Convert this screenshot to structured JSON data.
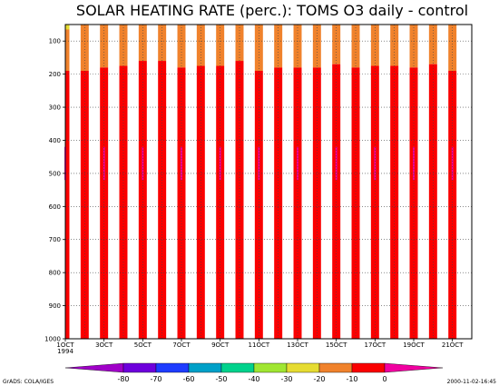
{
  "chart_data": {
    "type": "heatmap",
    "title": "SOLAR HEATING RATE (perc.): TOMS O3 daily - control",
    "xlabel": "",
    "ylabel": "",
    "x_tick_labels": [
      "1OCT\n1994",
      "3OCT",
      "5OCT",
      "7OCT",
      "9OCT",
      "11OCT",
      "13OCT",
      "15OCT",
      "17OCT",
      "19OCT",
      "21OCT"
    ],
    "x_ticks_day": [
      1,
      3,
      5,
      7,
      9,
      11,
      13,
      15,
      17,
      19,
      21
    ],
    "xlim": [
      1,
      22
    ],
    "y_tick_labels": [
      "100",
      "200",
      "300",
      "400",
      "500",
      "600",
      "700",
      "800",
      "900",
      "1000"
    ],
    "y_ticks": [
      100,
      200,
      300,
      400,
      500,
      600,
      700,
      800,
      900,
      1000
    ],
    "ylim": [
      1000,
      50
    ],
    "y_scale": "linear",
    "grid": true,
    "colorbar": {
      "levels": [
        -80,
        -70,
        -60,
        -50,
        -40,
        -30,
        -20,
        -10,
        0
      ],
      "labels": [
        "-80",
        "-70",
        "-60",
        "-50",
        "-40",
        "-30",
        "-20",
        "-10",
        "0"
      ],
      "colors": [
        "#a000c8",
        "#6e00dc",
        "#1e3cff",
        "#00a0c8",
        "#00d28c",
        "#a0e632",
        "#e6dc32",
        "#f0822c",
        "#fa0000",
        "#f000a0"
      ]
    },
    "bands_description": "daytime columns: orange (-20 to -10) above ~150-190 hPa, red (-10 to 0) below; magenta (>0) patches in lower levels",
    "day_columns": [
      {
        "day": 1.0,
        "orange_bottom": 190,
        "yellow_top": true
      },
      {
        "day": 2.0,
        "orange_bottom": 190
      },
      {
        "day": 3.0,
        "orange_bottom": 180
      },
      {
        "day": 4.0,
        "orange_bottom": 175
      },
      {
        "day": 5.0,
        "orange_bottom": 160
      },
      {
        "day": 6.0,
        "orange_bottom": 160
      },
      {
        "day": 7.0,
        "orange_bottom": 180
      },
      {
        "day": 8.0,
        "orange_bottom": 175
      },
      {
        "day": 9.0,
        "orange_bottom": 175
      },
      {
        "day": 10.0,
        "orange_bottom": 160
      },
      {
        "day": 11.0,
        "orange_bottom": 190
      },
      {
        "day": 12.0,
        "orange_bottom": 180
      },
      {
        "day": 13.0,
        "orange_bottom": 180
      },
      {
        "day": 14.0,
        "orange_bottom": 180
      },
      {
        "day": 15.0,
        "orange_bottom": 170
      },
      {
        "day": 16.0,
        "orange_bottom": 180
      },
      {
        "day": 17.0,
        "orange_bottom": 175
      },
      {
        "day": 18.0,
        "orange_bottom": 175
      },
      {
        "day": 19.0,
        "orange_bottom": 180
      },
      {
        "day": 20.0,
        "orange_bottom": 170
      },
      {
        "day": 21.0,
        "orange_bottom": 190
      }
    ]
  },
  "footer": {
    "left": "GrADS: COLA/IGES",
    "right": "2000-11-02-16:45"
  }
}
